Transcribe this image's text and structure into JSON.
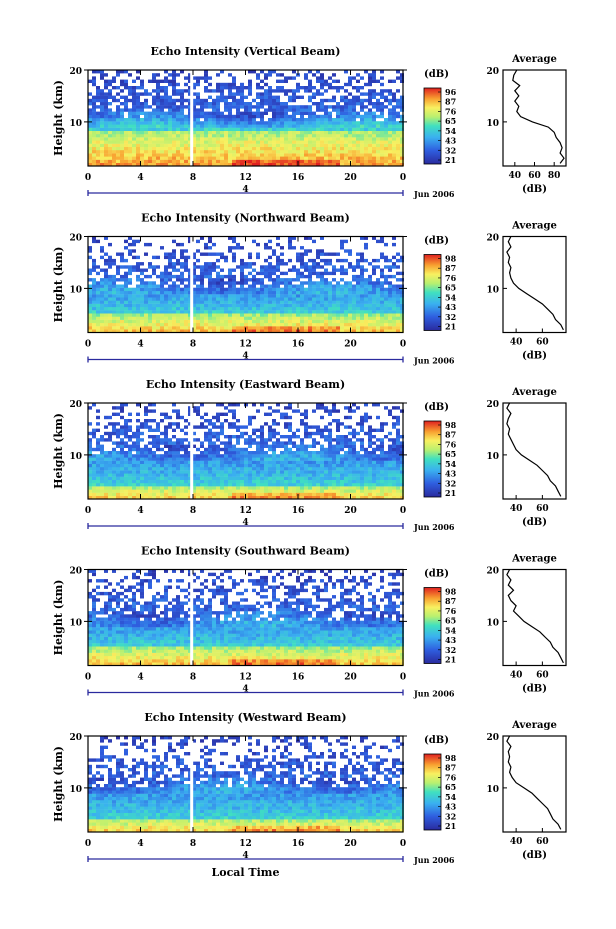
{
  "chart_data": [
    {
      "type": "heatmap",
      "title": "Echo Intensity (Vertical Beam)",
      "ylabel": "Height (km)",
      "xlabel": "",
      "x_ticks": [
        "0",
        "4",
        "8",
        "12",
        "16",
        "20"
      ],
      "y_ticks": [
        "20",
        "10"
      ],
      "xlim": [
        0,
        24
      ],
      "ylim": [
        1.5,
        20
      ],
      "colorbar_label": "(dB)",
      "colorbar_ticks": [
        "96",
        "87",
        "76",
        "65",
        "54",
        "43",
        "32",
        "21"
      ],
      "date_label": "Jun 2006",
      "day_marker": "4",
      "gap_at_hour": 7.9,
      "strong_layer_top_km": 8.5,
      "avg_title": "Average",
      "avg_xlabel": "(dB)",
      "avg_x_ticks": [
        "40",
        "60",
        "80"
      ],
      "avg_y_ticks": [
        "20",
        "10"
      ],
      "avg_xlim": [
        28,
        92
      ],
      "avg_profile": [
        [
          20,
          42
        ],
        [
          19,
          39
        ],
        [
          18,
          38
        ],
        [
          17,
          45
        ],
        [
          16,
          40
        ],
        [
          15,
          44
        ],
        [
          14,
          40
        ],
        [
          13,
          44
        ],
        [
          12,
          42
        ],
        [
          11,
          46
        ],
        [
          10,
          58
        ],
        [
          9,
          74
        ],
        [
          8,
          80
        ],
        [
          7,
          82
        ],
        [
          6,
          86
        ],
        [
          5,
          88
        ],
        [
          4,
          86
        ],
        [
          3,
          90
        ],
        [
          2,
          86
        ]
      ]
    },
    {
      "type": "heatmap",
      "title": "Echo Intensity (Northward Beam)",
      "ylabel": "Height (km)",
      "xlabel": "",
      "x_ticks": [
        "0",
        "4",
        "8",
        "12",
        "16",
        "20"
      ],
      "y_ticks": [
        "20",
        "10"
      ],
      "xlim": [
        0,
        24
      ],
      "ylim": [
        1.5,
        20
      ],
      "colorbar_label": "(dB)",
      "colorbar_ticks": [
        "98",
        "87",
        "76",
        "65",
        "54",
        "43",
        "32",
        "21"
      ],
      "date_label": "Jun 2006",
      "day_marker": "4",
      "gap_at_hour": 7.9,
      "strong_layer_top_km": 5,
      "avg_title": "Average",
      "avg_xlabel": "(dB)",
      "avg_x_ticks": [
        "40",
        "60"
      ],
      "avg_y_ticks": [
        "20",
        "10"
      ],
      "avg_xlim": [
        30,
        78
      ],
      "avg_profile": [
        [
          20,
          36
        ],
        [
          19,
          34
        ],
        [
          18,
          36
        ],
        [
          17,
          33
        ],
        [
          16,
          35
        ],
        [
          15,
          34
        ],
        [
          14,
          36
        ],
        [
          13,
          35
        ],
        [
          12,
          36
        ],
        [
          11,
          38
        ],
        [
          10,
          42
        ],
        [
          9,
          48
        ],
        [
          8,
          54
        ],
        [
          7,
          60
        ],
        [
          6,
          64
        ],
        [
          5,
          68
        ],
        [
          4,
          70
        ],
        [
          3,
          74
        ],
        [
          2,
          76
        ]
      ]
    },
    {
      "type": "heatmap",
      "title": "Echo Intensity (Eastward Beam)",
      "ylabel": "Height (km)",
      "xlabel": "",
      "x_ticks": [
        "0",
        "4",
        "8",
        "12",
        "16",
        "20"
      ],
      "y_ticks": [
        "20",
        "10"
      ],
      "xlim": [
        0,
        24
      ],
      "ylim": [
        1.5,
        20
      ],
      "colorbar_label": "(dB)",
      "colorbar_ticks": [
        "98",
        "87",
        "76",
        "65",
        "54",
        "43",
        "32",
        "21"
      ],
      "date_label": "Jun 2006",
      "day_marker": "4",
      "gap_at_hour": 7.9,
      "strong_layer_top_km": 4,
      "avg_title": "Average",
      "avg_xlabel": "(dB)",
      "avg_x_ticks": [
        "40",
        "60"
      ],
      "avg_y_ticks": [
        "20",
        "10"
      ],
      "avg_xlim": [
        30,
        78
      ],
      "avg_profile": [
        [
          20,
          35
        ],
        [
          19,
          33
        ],
        [
          18,
          36
        ],
        [
          17,
          34
        ],
        [
          16,
          33
        ],
        [
          15,
          35
        ],
        [
          14,
          34
        ],
        [
          13,
          36
        ],
        [
          12,
          38
        ],
        [
          11,
          40
        ],
        [
          10,
          44
        ],
        [
          9,
          50
        ],
        [
          8,
          56
        ],
        [
          7,
          60
        ],
        [
          6,
          64
        ],
        [
          5,
          66
        ],
        [
          4,
          70
        ],
        [
          3,
          72
        ],
        [
          2,
          74
        ]
      ]
    },
    {
      "type": "heatmap",
      "title": "Echo Intensity (Southward Beam)",
      "ylabel": "Height (km)",
      "xlabel": "",
      "x_ticks": [
        "0",
        "4",
        "8",
        "12",
        "16",
        "20"
      ],
      "y_ticks": [
        "20",
        "10"
      ],
      "xlim": [
        0,
        24
      ],
      "ylim": [
        1.5,
        20
      ],
      "colorbar_label": "(dB)",
      "colorbar_ticks": [
        "98",
        "87",
        "76",
        "65",
        "54",
        "43",
        "32",
        "21"
      ],
      "date_label": "Jun 2006",
      "day_marker": "4",
      "gap_at_hour": 7.9,
      "strong_layer_top_km": 5,
      "avg_title": "Average",
      "avg_xlabel": "(dB)",
      "avg_x_ticks": [
        "40",
        "60"
      ],
      "avg_y_ticks": [
        "20",
        "10"
      ],
      "avg_xlim": [
        30,
        78
      ],
      "avg_profile": [
        [
          20,
          35
        ],
        [
          19,
          33
        ],
        [
          18,
          36
        ],
        [
          17,
          34
        ],
        [
          16,
          38
        ],
        [
          15,
          34
        ],
        [
          14,
          36
        ],
        [
          13,
          40
        ],
        [
          12,
          38
        ],
        [
          11,
          42
        ],
        [
          10,
          46
        ],
        [
          9,
          52
        ],
        [
          8,
          58
        ],
        [
          7,
          62
        ],
        [
          6,
          66
        ],
        [
          5,
          68
        ],
        [
          4,
          72
        ],
        [
          3,
          74
        ],
        [
          2,
          76
        ]
      ]
    },
    {
      "type": "heatmap",
      "title": "Echo Intensity (Westward Beam)",
      "ylabel": "Height (km)",
      "xlabel": "Local Time",
      "x_ticks": [
        "0",
        "4",
        "8",
        "12",
        "16",
        "20"
      ],
      "y_ticks": [
        "20",
        "10"
      ],
      "xlim": [
        0,
        24
      ],
      "ylim": [
        1.5,
        20
      ],
      "colorbar_label": "(dB)",
      "colorbar_ticks": [
        "98",
        "87",
        "76",
        "65",
        "54",
        "43",
        "32",
        "21"
      ],
      "date_label": "Jun 2006",
      "day_marker": "4",
      "gap_at_hour": 7.9,
      "strong_layer_top_km": 4,
      "avg_title": "Average",
      "avg_xlabel": "(dB)",
      "avg_x_ticks": [
        "40",
        "60"
      ],
      "avg_y_ticks": [
        "20",
        "10"
      ],
      "avg_xlim": [
        30,
        78
      ],
      "avg_profile": [
        [
          20,
          35
        ],
        [
          19,
          33
        ],
        [
          18,
          36
        ],
        [
          17,
          34
        ],
        [
          16,
          35
        ],
        [
          15,
          34
        ],
        [
          14,
          36
        ],
        [
          13,
          35
        ],
        [
          12,
          37
        ],
        [
          11,
          40
        ],
        [
          10,
          46
        ],
        [
          9,
          52
        ],
        [
          8,
          56
        ],
        [
          7,
          60
        ],
        [
          6,
          64
        ],
        [
          5,
          66
        ],
        [
          4,
          68
        ],
        [
          3,
          72
        ],
        [
          2,
          74
        ]
      ]
    }
  ]
}
